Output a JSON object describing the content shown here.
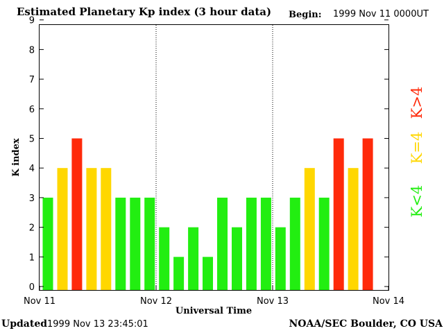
{
  "header": {
    "title": "Estimated Planetary Kp index (3 hour data)",
    "begin_label": "Begin:",
    "begin_value": "1999 Nov 11 0000UT"
  },
  "footer": {
    "updated_label": "Updated",
    "updated_value": "1999 Nov 13 23:45:01",
    "credit": "NOAA/SEC Boulder, CO USA"
  },
  "legend": {
    "green": "K<4",
    "yellow": "K=4",
    "red": "K>4"
  },
  "colors": {
    "green": "#22ee11",
    "yellow": "#ffd700",
    "red": "#ff2a0a"
  },
  "chart_data": {
    "type": "bar",
    "title": "Estimated Planetary Kp index (3 hour data)",
    "xlabel": "Universal Time",
    "ylabel": "K index",
    "ylim": [
      0,
      9
    ],
    "yticks": [
      "0",
      "1",
      "2",
      "3",
      "4",
      "5",
      "6",
      "7",
      "8",
      "9"
    ],
    "xticks": [
      "Nov 11",
      "Nov 12",
      "Nov 13",
      "Nov 14"
    ],
    "interval_hours": 3,
    "values": [
      3,
      4,
      5,
      4,
      4,
      3,
      3,
      3,
      2,
      1,
      2,
      1,
      3,
      2,
      3,
      3,
      2,
      3,
      4,
      3,
      5,
      4,
      5
    ]
  }
}
